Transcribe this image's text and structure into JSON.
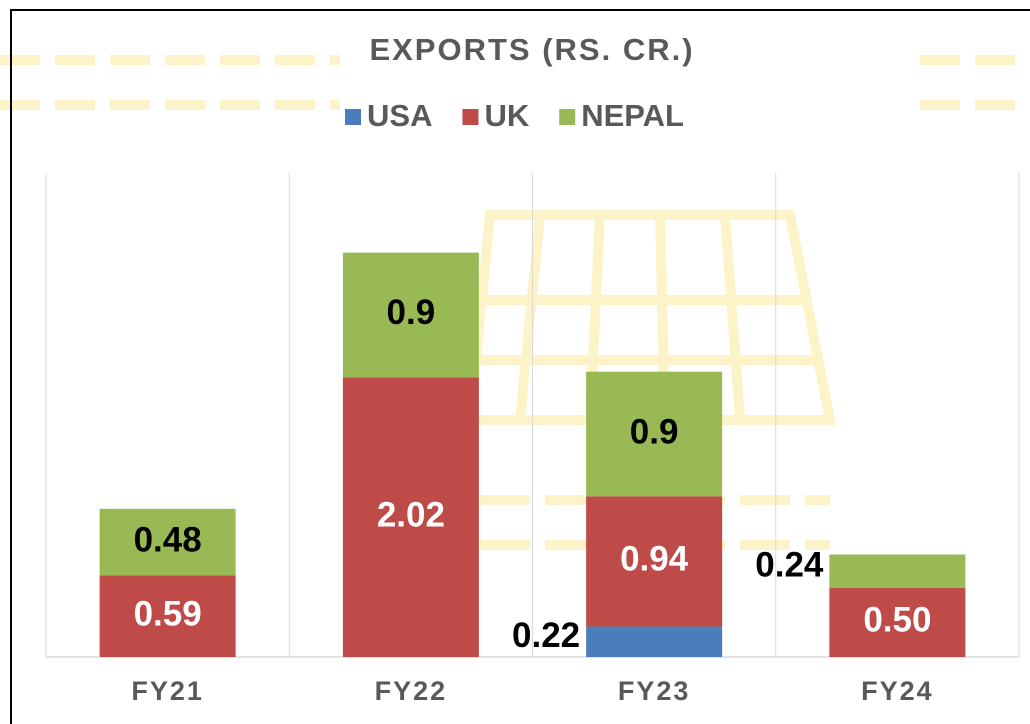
{
  "chart_data": {
    "type": "stacked_bar",
    "title": "EXPORTS (RS. CR.)",
    "categories": [
      "FY21",
      "FY22",
      "FY23",
      "FY24"
    ],
    "series": [
      {
        "name": "USA",
        "color": "#4a7ebb",
        "values": [
          null,
          null,
          0.22,
          null
        ]
      },
      {
        "name": "UK",
        "color": "#be4b48",
        "values": [
          0.59,
          2.02,
          0.94,
          0.5
        ],
        "value_labels": [
          "0.59",
          "2.02",
          "0.94",
          "0.50"
        ]
      },
      {
        "name": "NEPAL",
        "color": "#98b954",
        "values": [
          0.48,
          0.9,
          0.9,
          0.24
        ]
      }
    ],
    "legend": "top",
    "grid": true
  }
}
